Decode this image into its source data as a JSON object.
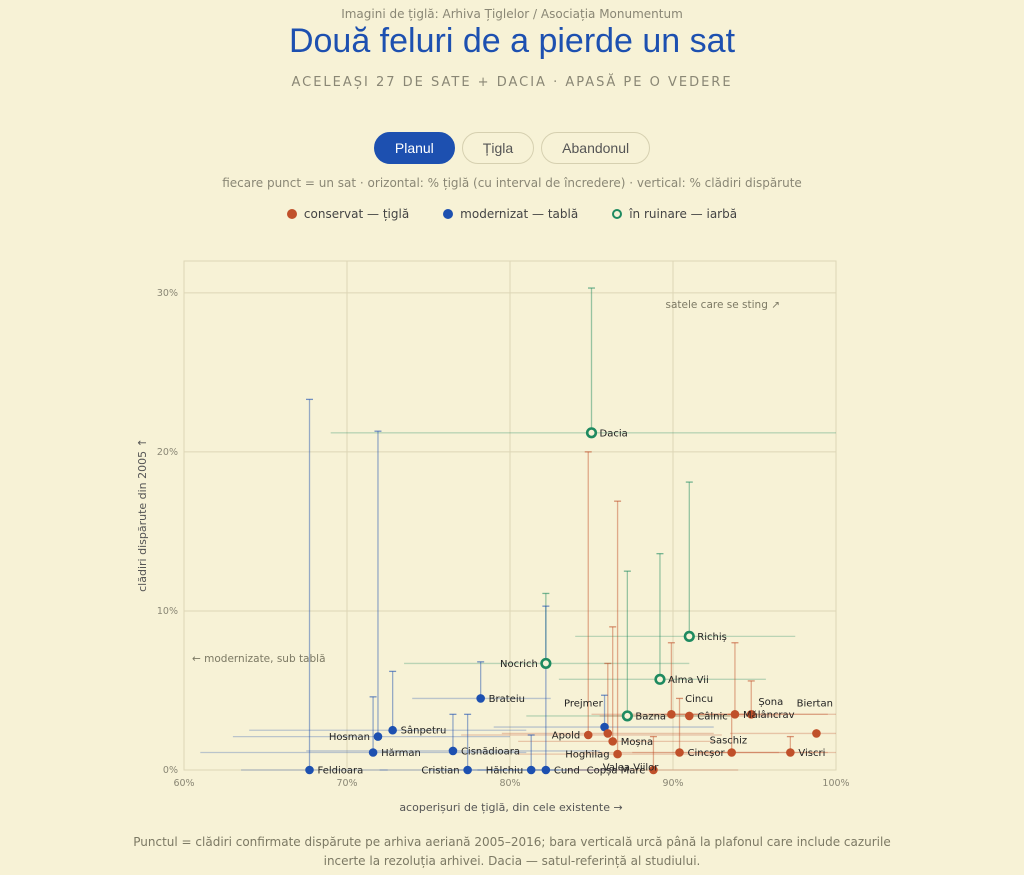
{
  "header": {
    "source": "Imagini de țiglă: Arhiva Țiglelor / Asociația Monumentum",
    "title": "Două feluri de a pierde un sat",
    "subtitle": "ACELEAȘI 27 DE SATE + DACIA · APASĂ PE O VEDERE"
  },
  "tabs": [
    {
      "label": "Planul",
      "active": true
    },
    {
      "label": "Țigla",
      "active": false
    },
    {
      "label": "Abandonul",
      "active": false
    }
  ],
  "note": "fiecare punct = un sat · orizontal: % țiglă (cu interval de încredere) · vertical: % clădiri dispărute",
  "legend": [
    {
      "label": "conservat — țiglă",
      "color": "#c0502a",
      "style": "filled"
    },
    {
      "label": "modernizat — tablă",
      "color": "#1d50b0",
      "style": "filled"
    },
    {
      "label": "în ruinare — iarbă",
      "color": "#1e8a60",
      "style": "hollow"
    }
  ],
  "annotations": {
    "top_right": "satele care se sting ↗",
    "left": "← modernizate, sub tablă"
  },
  "footnote": "Punctul = clădiri confirmate dispărute pe arhiva aeriană 2005–2016; bara verticală urcă până la plafonul care include cazurile incerte la rezoluția arhivei. Dacia — satul-referință al studiului.",
  "chart_data": {
    "type": "scatter",
    "xlabel": "acoperișuri de țiglă, din cele existente →",
    "ylabel": "clădiri dispărute din 2005 ↑",
    "xlim": [
      60,
      100
    ],
    "ylim": [
      0,
      32
    ],
    "xticks": [
      "60%",
      "70%",
      "80%",
      "90%",
      "100%"
    ],
    "yticks": [
      "0%",
      "10%",
      "20%",
      "30%"
    ],
    "grid": true,
    "colors": {
      "conservat": "#c0502a",
      "modernizat": "#1d50b0",
      "ruinare": "#1e8a60"
    },
    "points": [
      {
        "name": "Dacia",
        "group": "ruinare",
        "x": 85.0,
        "y": 21.2,
        "x_lo": 69.0,
        "x_hi": 100,
        "y_hi": 30.3,
        "label_side": "right"
      },
      {
        "name": "Richiș",
        "group": "ruinare",
        "x": 91.0,
        "y": 8.4,
        "x_lo": 84.0,
        "x_hi": 97.5,
        "y_hi": 18.1,
        "label_side": "right"
      },
      {
        "name": "Nocrich",
        "group": "ruinare",
        "x": 82.2,
        "y": 6.7,
        "x_lo": 73.5,
        "x_hi": 91.0,
        "y_hi": 11.1,
        "label_side": "left"
      },
      {
        "name": "Alma Vii",
        "group": "ruinare",
        "x": 89.2,
        "y": 5.7,
        "x_lo": 83.0,
        "x_hi": 95.7,
        "y_hi": 13.6,
        "label_side": "right"
      },
      {
        "name": "Bazna",
        "group": "ruinare",
        "x": 87.2,
        "y": 3.4,
        "x_lo": 81.0,
        "x_hi": 93.5,
        "y_hi": 12.5,
        "label_side": "right"
      },
      {
        "name": "Feldioara",
        "group": "modernizat",
        "x": 67.7,
        "y": 0.0,
        "x_lo": 63.5,
        "x_hi": 72.5,
        "y_hi": 23.3,
        "label_side": "right"
      },
      {
        "name": "Hosman",
        "group": "modernizat",
        "x": 71.9,
        "y": 2.1,
        "x_lo": 63.0,
        "x_hi": 80.0,
        "y_hi": 21.3,
        "label_side": "left"
      },
      {
        "name": "Sânpetru",
        "group": "modernizat",
        "x": 72.8,
        "y": 2.5,
        "x_lo": 64.0,
        "x_hi": 81.0,
        "y_hi": 6.2,
        "label_side": "right"
      },
      {
        "name": "Hărman",
        "group": "modernizat",
        "x": 71.6,
        "y": 1.1,
        "x_lo": 61.0,
        "x_hi": 81.0,
        "y_hi": 4.6,
        "label_side": "right"
      },
      {
        "name": "Brateiu",
        "group": "modernizat",
        "x": 78.2,
        "y": 4.5,
        "x_lo": 74.0,
        "x_hi": 82.5,
        "y_hi": 6.8,
        "label_side": "right"
      },
      {
        "name": "Cisnădioara",
        "group": "modernizat",
        "x": 76.5,
        "y": 1.2,
        "x_lo": 67.5,
        "x_hi": 85.5,
        "y_hi": 3.5,
        "label_side": "right"
      },
      {
        "name": "Cristian",
        "group": "modernizat",
        "x": 77.4,
        "y": 0.0,
        "x_lo": 72.0,
        "x_hi": 83.0,
        "y_hi": 3.5,
        "label_side": "left"
      },
      {
        "name": "Hălchiu",
        "group": "modernizat",
        "x": 81.3,
        "y": 0.0,
        "x_lo": 75.0,
        "x_hi": 87.5,
        "y_hi": 2.2,
        "label_side": "left"
      },
      {
        "name": "Cund",
        "group": "modernizat",
        "x": 82.2,
        "y": 0.0,
        "x_lo": 78.0,
        "x_hi": 86.5,
        "y_hi": 10.3,
        "label_side": "right"
      },
      {
        "name": "Prejmer",
        "group": "modernizat",
        "x": 85.8,
        "y": 2.7,
        "x_lo": 79.0,
        "x_hi": 92.5,
        "y_hi": 4.7,
        "label_side": "none"
      },
      {
        "name": "Apold",
        "group": "conservat",
        "x": 84.8,
        "y": 2.2,
        "x_lo": 77.0,
        "x_hi": 93.0,
        "y_hi": 20.0,
        "label_side": "left"
      },
      {
        "name": "Moșna",
        "group": "conservat",
        "x": 86.3,
        "y": 1.8,
        "x_lo": 80.5,
        "x_hi": 92.5,
        "y_hi": 9.0,
        "label_side": "right"
      },
      {
        "name": "Valea Viilor",
        "group": "conservat",
        "x": 86.0,
        "y": 2.3,
        "x_lo": 79.5,
        "x_hi": 92.5,
        "y_hi": 6.7,
        "label_side": "none"
      },
      {
        "name": "Hoghilag",
        "group": "conservat",
        "x": 86.6,
        "y": 1.0,
        "x_lo": 80.5,
        "x_hi": 92.5,
        "y_hi": 16.9,
        "label_side": "left"
      },
      {
        "name": "Copșa Mare",
        "group": "conservat",
        "x": 88.8,
        "y": 0.0,
        "x_lo": 83.5,
        "x_hi": 94.0,
        "y_hi": 2.1,
        "label_side": "left"
      },
      {
        "name": "Cincu",
        "group": "conservat",
        "x": 89.9,
        "y": 3.5,
        "x_lo": 85.0,
        "x_hi": 95.0,
        "y_hi": 8.0,
        "label_side": "none"
      },
      {
        "name": "Cincșor",
        "group": "conservat",
        "x": 90.4,
        "y": 1.1,
        "x_lo": 84.5,
        "x_hi": 96.5,
        "y_hi": 4.5,
        "label_side": "right"
      },
      {
        "name": "Câlnic",
        "group": "conservat",
        "x": 91.0,
        "y": 3.4,
        "x_lo": 85.5,
        "x_hi": 96.5,
        "y_hi": 3.4,
        "label_side": "right"
      },
      {
        "name": "Saschiz",
        "group": "conservat",
        "x": 93.6,
        "y": 1.1,
        "x_lo": 87.5,
        "x_hi": 99.5,
        "y_hi": 3.5,
        "label_side": "none"
      },
      {
        "name": "Mălâncrav",
        "group": "conservat",
        "x": 93.8,
        "y": 3.5,
        "x_lo": 88.5,
        "x_hi": 99.5,
        "y_hi": 8.0,
        "label_side": "right"
      },
      {
        "name": "Șona",
        "group": "conservat",
        "x": 94.8,
        "y": 3.5,
        "x_lo": 89.5,
        "x_hi": 100,
        "y_hi": 5.6,
        "label_side": "none"
      },
      {
        "name": "Viscri",
        "group": "conservat",
        "x": 97.2,
        "y": 1.1,
        "x_lo": 91.5,
        "x_hi": 100,
        "y_hi": 2.1,
        "label_side": "right"
      },
      {
        "name": "Biertan",
        "group": "conservat",
        "x": 98.8,
        "y": 2.3,
        "x_lo": 93.5,
        "x_hi": 100,
        "y_hi": 2.3,
        "label_side": "none"
      }
    ],
    "extra_labels": [
      {
        "name": "Prejmer",
        "x": 84.5,
        "y": 4.2
      },
      {
        "name": "Valea Viilor",
        "x": 87.4,
        "y": 0.2
      },
      {
        "name": "Cincu",
        "x": 91.6,
        "y": 4.5
      },
      {
        "name": "Saschiz",
        "x": 93.4,
        "y": 1.9
      },
      {
        "name": "Șona",
        "x": 96.0,
        "y": 4.3
      },
      {
        "name": "Biertan",
        "x": 98.7,
        "y": 4.2
      }
    ]
  }
}
